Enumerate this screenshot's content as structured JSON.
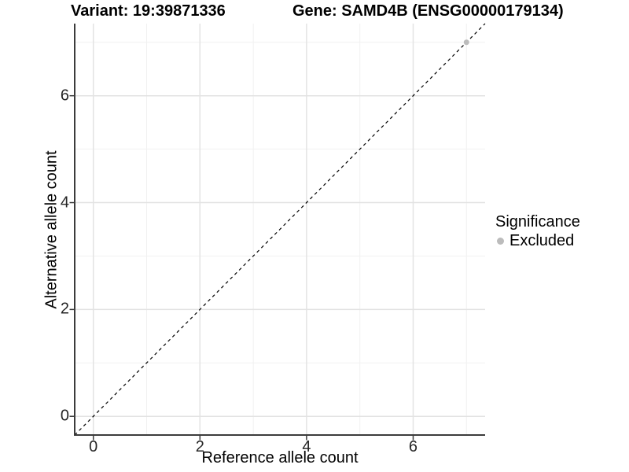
{
  "figure": {
    "titles": {
      "variant": "Variant: 19:39871336",
      "gene": "Gene: SAMD4B (ENSG00000179134)"
    },
    "x_axis": {
      "label": "Reference allele count"
    },
    "y_axis": {
      "label": "Alternative allele count"
    },
    "legend": {
      "title": "Significance",
      "items": [
        {
          "label": "Excluded",
          "color": "#bcbcbc"
        }
      ]
    }
  },
  "colors": {
    "background": "#ffffff",
    "grid_major": "#e3e3e3",
    "grid_minor": "#f1f1f1",
    "axis_line": "#3c3c3c",
    "tick_mark": "#3c3c3c",
    "tick_text": "#262626",
    "reference_line": "#000000",
    "excluded_point": "#bcbcbc"
  },
  "chart_data": {
    "type": "scatter",
    "title_left": "Variant: 19:39871336",
    "title_right": "Gene: SAMD4B (ENSG00000179134)",
    "xlabel": "Reference allele count",
    "ylabel": "Alternative allele count",
    "xlim": [
      -0.35,
      7.35
    ],
    "ylim": [
      -0.35,
      7.35
    ],
    "x_ticks": [
      0,
      2,
      4,
      6
    ],
    "y_ticks": [
      0,
      2,
      4,
      6
    ],
    "x_minor_ticks": [
      1,
      3,
      5,
      7
    ],
    "y_minor_ticks": [
      1,
      3,
      5,
      7
    ],
    "grid": "major and minor gridlines, light gray on white panel",
    "legend_position": "right",
    "series": [
      {
        "name": "Excluded",
        "color": "#bcbcbc",
        "points": [
          [
            7,
            7
          ]
        ]
      }
    ],
    "reference_line": {
      "type": "identity y=x",
      "style": "dashed",
      "color": "#000000",
      "from": [
        -0.35,
        -0.35
      ],
      "to": [
        7.35,
        7.35
      ]
    }
  }
}
